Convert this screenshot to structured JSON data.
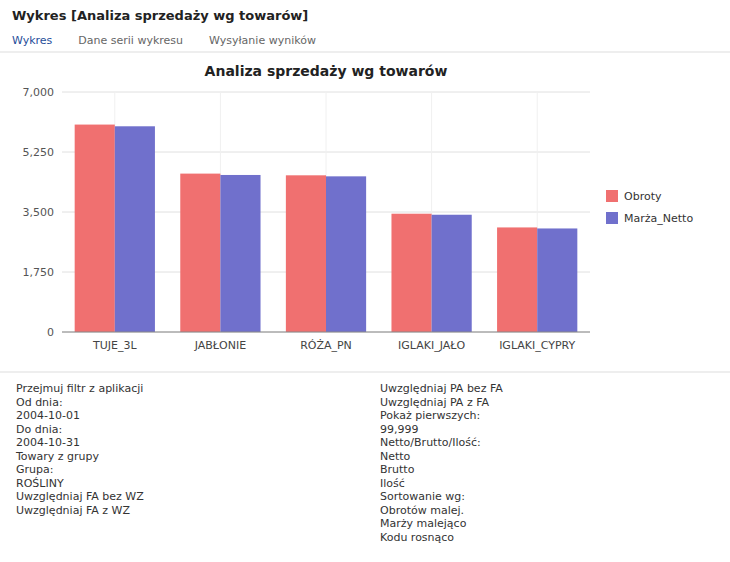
{
  "chart_data": {
    "type": "bar",
    "title": "Analiza sprzedaży wg towarów",
    "categories": [
      "TUJE_3L",
      "JABŁONIE",
      "RÓŻA_PN",
      "IGLAKI_JAŁO",
      "IGLAKI_CYPRY"
    ],
    "series": [
      {
        "name": "Obroty",
        "color": "#F07070",
        "values": [
          6050,
          4620,
          4570,
          3450,
          3050
        ]
      },
      {
        "name": "Marża_Netto",
        "color": "#7070CC",
        "values": [
          6000,
          4580,
          4540,
          3420,
          3020
        ]
      }
    ],
    "ylim": [
      0,
      7000
    ],
    "yticks": [
      0,
      {
        "value": 1750,
        "label": "1,750"
      },
      {
        "value": 3500,
        "label": "3,500"
      },
      {
        "value": 5250,
        "label": "5,250"
      },
      {
        "value": 7000,
        "label": "7,000"
      }
    ],
    "grid": true,
    "legend": "right",
    "annotations": [
      "Wykres [Analiza sprzedaży wg towarów]",
      "Wykres",
      "Dane serii wykresu",
      "Wysyłanie wyników",
      "Przejmuj filtr z aplikacji",
      "Od dnia:",
      "2004-10-01",
      "Do dnia:",
      "2004-10-31",
      "Towary z grupy",
      "Grupa:",
      "ROŚLINY",
      "Uwzględniaj FA bez WZ",
      "Uwzględniaj FA z WZ",
      "Uwzględniaj PA bez FA",
      "Uwzględniaj PA z FA",
      "Pokaż pierwszych:",
      "99,999",
      "Netto/Brutto/Ilość:",
      "Netto",
      "Brutto",
      "Ilość",
      "Sortowanie wg:",
      "Obrotów malej.",
      "Marży malejąco",
      "Kodu rosnąco"
    ]
  }
}
